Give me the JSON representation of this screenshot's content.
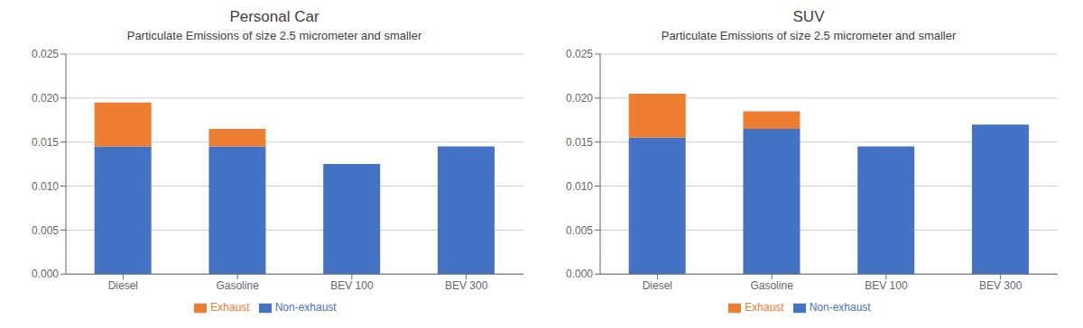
{
  "chart_data": [
    {
      "type": "bar",
      "stacked": true,
      "title": "Personal Car",
      "subtitle": "Particulate Emissions of size 2.5 micrometer and smaller",
      "categories": [
        "Diesel",
        "Gasoline",
        "BEV 100",
        "BEV 300"
      ],
      "series": [
        {
          "name": "Non-exhaust",
          "color": "#4472C4",
          "values": [
            0.0145,
            0.0145,
            0.0125,
            0.0145
          ]
        },
        {
          "name": "Exhaust",
          "color": "#ED7D31",
          "values": [
            0.005,
            0.002,
            0.0,
            0.0
          ]
        }
      ],
      "ylim": [
        0,
        0.025
      ],
      "yticks": [
        {
          "value": 0,
          "label": "0.000"
        },
        0.005,
        {
          "value": 0.01,
          "label": "0.010"
        },
        0.015,
        {
          "value": 0.02,
          "label": "0.020"
        },
        0.025
      ],
      "grid": true,
      "legend": "bottom"
    },
    {
      "type": "bar",
      "stacked": true,
      "title": "SUV",
      "subtitle": "Particulate Emissions of size 2.5 micrometer and smaller",
      "categories": [
        "Diesel",
        "Gasoline",
        "BEV 100",
        "BEV 300"
      ],
      "series": [
        {
          "name": "Non-exhaust",
          "color": "#4472C4",
          "values": [
            0.0155,
            0.0165,
            0.0145,
            0.017
          ]
        },
        {
          "name": "Exhaust",
          "color": "#ED7D31",
          "values": [
            0.005,
            0.002,
            0.0,
            0.0
          ]
        }
      ],
      "ylim": [
        0,
        0.025
      ],
      "yticks": [
        {
          "value": 0,
          "label": "0.000"
        },
        0.005,
        {
          "value": 0.01,
          "label": "0.010"
        },
        0.015,
        {
          "value": 0.02,
          "label": "0.020"
        },
        0.025
      ],
      "grid": true,
      "legend": "bottom"
    }
  ]
}
